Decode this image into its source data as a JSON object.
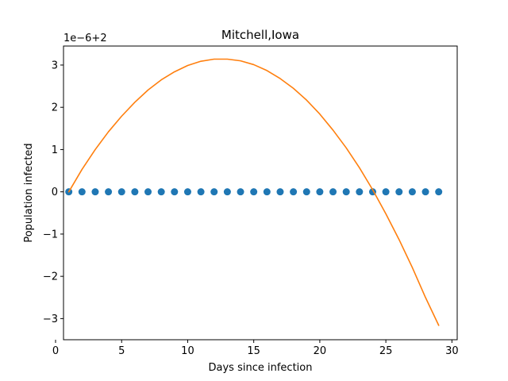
{
  "chart_data": {
    "type": "scatter",
    "title": "Mitchell,Iowa",
    "xlabel": "Days since infection",
    "ylabel": "Population infected",
    "offset_label": "1e−6+2",
    "xlim": [
      0.6,
      30.4
    ],
    "ylim": [
      -3.5,
      3.45
    ],
    "xticks": [
      0,
      5,
      10,
      15,
      20,
      25,
      30
    ],
    "yticks": [
      -3,
      -2,
      -1,
      0,
      1,
      2,
      3
    ],
    "ytick_labels": [
      "−3",
      "−2",
      "−1",
      "0",
      "1",
      "2",
      "3"
    ],
    "grid": false,
    "series": [
      {
        "kind": "scatter",
        "color": "#1f77b4",
        "x": [
          1,
          2,
          3,
          4,
          5,
          6,
          7,
          8,
          9,
          10,
          11,
          12,
          13,
          14,
          15,
          16,
          17,
          18,
          19,
          20,
          21,
          22,
          23,
          24,
          25,
          26,
          27,
          28,
          29
        ],
        "y": [
          0,
          0,
          0,
          0,
          0,
          0,
          0,
          0,
          0,
          0,
          0,
          0,
          0,
          0,
          0,
          0,
          0,
          0,
          0,
          0,
          0,
          0,
          0,
          0,
          0,
          0,
          0,
          0,
          0
        ]
      },
      {
        "kind": "line",
        "color": "#ff7f0e",
        "x": [
          1,
          2,
          3,
          4,
          5,
          6,
          7,
          8,
          9,
          10,
          11,
          12,
          13,
          14,
          15,
          16,
          17,
          18,
          19,
          20,
          21,
          22,
          23,
          24,
          25,
          26,
          27,
          28,
          29
        ],
        "y": [
          0.0,
          0.53,
          1.0,
          1.42,
          1.79,
          2.12,
          2.41,
          2.65,
          2.84,
          2.99,
          3.09,
          3.14,
          3.14,
          3.1,
          3.01,
          2.87,
          2.68,
          2.45,
          2.17,
          1.84,
          1.46,
          1.04,
          0.57,
          0.05,
          -0.52,
          -1.13,
          -1.79,
          -2.5,
          -3.16
        ]
      }
    ]
  }
}
